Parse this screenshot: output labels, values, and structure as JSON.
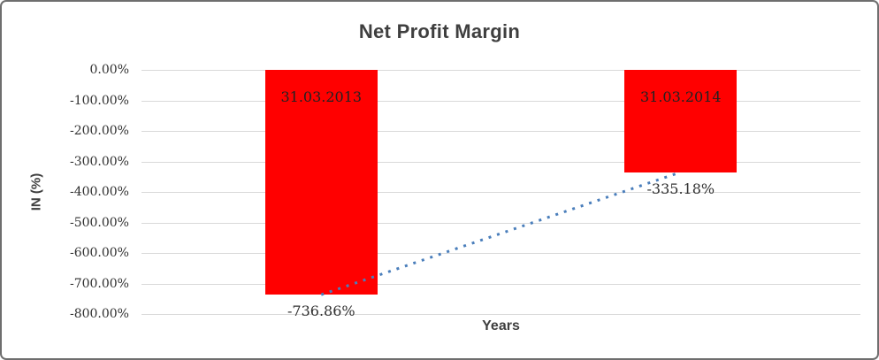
{
  "chart_data": {
    "type": "bar",
    "title": "Net Profit Margin",
    "xlabel": "Years",
    "ylabel": "IN (%)",
    "categories": [
      "31.03.2013",
      "31.03.2014"
    ],
    "series": [
      {
        "name": "Net Profit Margin",
        "values": [
          -736.86,
          -335.18
        ]
      }
    ],
    "data_labels": [
      "-736.86%",
      "-335.18%"
    ],
    "ylim": [
      -800,
      0
    ],
    "yticks": [
      0,
      -100,
      -200,
      -300,
      -400,
      -500,
      -600,
      -700,
      -800
    ],
    "ytick_labels": [
      "0.00%",
      "-100.00%",
      "-200.00%",
      "-300.00%",
      "-400.00%",
      "-500.00%",
      "-600.00%",
      "-700.00%",
      "-800.00%"
    ],
    "grid": true,
    "legend": false,
    "colors": {
      "bar": "#FF0000",
      "trendline": "#4A7EBB",
      "gridline": "#D9D9D9",
      "text": "#3F3F3F"
    },
    "trendline": {
      "style": "dotted",
      "points": [
        -736.86,
        -335.18
      ]
    }
  }
}
